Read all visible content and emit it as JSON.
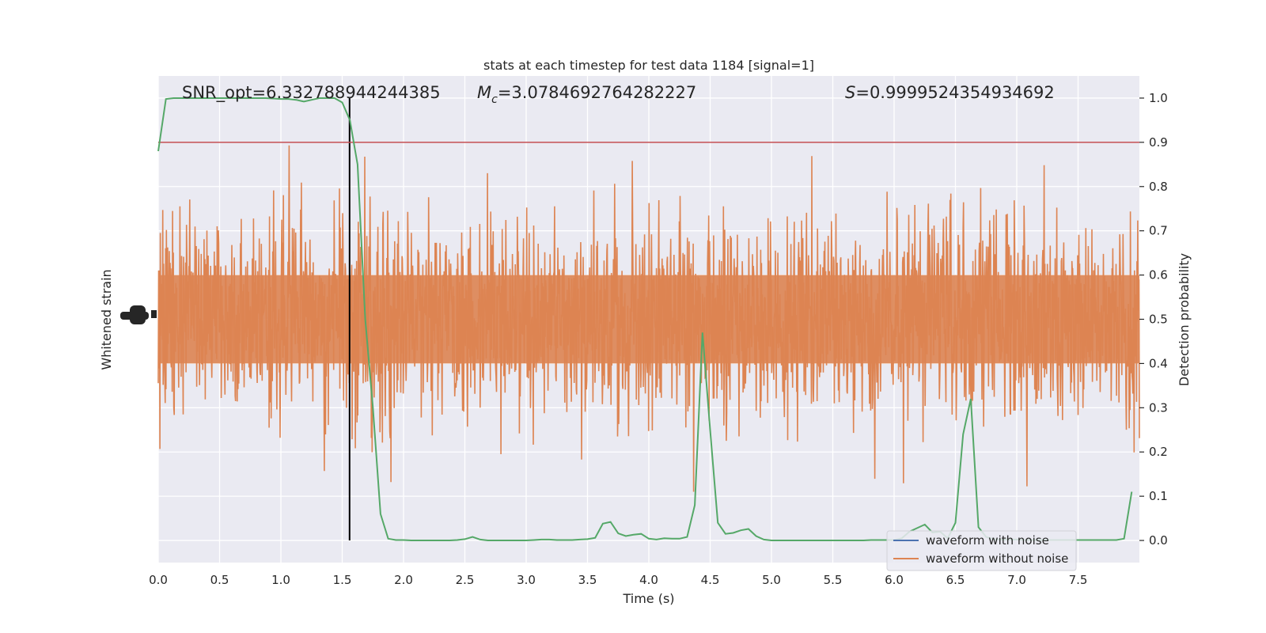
{
  "chart_data": {
    "type": "line",
    "title": "stats at each timestep for test data 1184 [signal=1]",
    "xlabel": "Time (s)",
    "ylabel_left": "Whitened strain",
    "ylabel_right": "Detection probability",
    "xlim": [
      0,
      8
    ],
    "ylim_right": [
      -0.05,
      1.05
    ],
    "x_ticks": [
      0.0,
      0.5,
      1.0,
      1.5,
      2.0,
      2.5,
      3.0,
      3.5,
      4.0,
      4.5,
      5.0,
      5.5,
      6.0,
      6.5,
      7.0,
      7.5
    ],
    "x_tick_labels": [
      "0.0",
      "0.5",
      "1.0",
      "1.5",
      "2.0",
      "2.5",
      "3.0",
      "3.5",
      "4.0",
      "4.5",
      "5.0",
      "5.5",
      "6.0",
      "6.5",
      "7.0",
      "7.5"
    ],
    "y_right_ticks": [
      0.0,
      0.1,
      0.2,
      0.3,
      0.4,
      0.5,
      0.6,
      0.7,
      0.8,
      0.9,
      1.0
    ],
    "y_right_tick_labels": [
      "0.0",
      "0.1",
      "0.2",
      "0.3",
      "0.4",
      "0.5",
      "0.6",
      "0.7",
      "0.8",
      "0.9",
      "1.0"
    ],
    "threshold": 0.9,
    "event_time": 1.56,
    "grid": true,
    "legend_position": "lower-right",
    "annotations": {
      "snr": "SNR_opt=6.332788944244385",
      "mc_symbol": "M",
      "mc_sub": "c",
      "mc_value": "=3.0784692764282227",
      "s_symbol": "S",
      "s_value": "=0.9999524354934692"
    },
    "series": [
      {
        "name": "waveform with noise",
        "color": "#4c72b0"
      },
      {
        "name": "waveform without noise",
        "color": "#dd8452"
      },
      {
        "color": "#55a868",
        "x": [
          0.0,
          0.0625,
          0.125,
          0.1875,
          0.25,
          0.3125,
          0.375,
          0.4375,
          0.5,
          0.5625,
          0.625,
          0.6875,
          0.75,
          0.8125,
          0.875,
          0.9375,
          1.0,
          1.0625,
          1.125,
          1.1875,
          1.25,
          1.3125,
          1.375,
          1.4375,
          1.5,
          1.5625,
          1.625,
          1.6875,
          1.75,
          1.8125,
          1.875,
          1.9375,
          2.0,
          2.0625,
          2.125,
          2.1875,
          2.25,
          2.3125,
          2.375,
          2.4375,
          2.5,
          2.5625,
          2.625,
          2.6875,
          2.75,
          2.8125,
          2.875,
          2.9375,
          3.0,
          3.0625,
          3.125,
          3.1875,
          3.25,
          3.3125,
          3.375,
          3.4375,
          3.5,
          3.5625,
          3.625,
          3.6875,
          3.75,
          3.8125,
          3.875,
          3.9375,
          4.0,
          4.0625,
          4.125,
          4.1875,
          4.25,
          4.3125,
          4.375,
          4.4375,
          4.5,
          4.5625,
          4.625,
          4.6875,
          4.75,
          4.8125,
          4.875,
          4.9375,
          5.0,
          5.0625,
          5.125,
          5.1875,
          5.25,
          5.3125,
          5.375,
          5.4375,
          5.5,
          5.5625,
          5.625,
          5.6875,
          5.75,
          5.8125,
          5.875,
          5.9375,
          6.0,
          6.0625,
          6.125,
          6.1875,
          6.25,
          6.3125,
          6.375,
          6.4375,
          6.5,
          6.5625,
          6.625,
          6.6875,
          6.75,
          6.8125,
          6.875,
          6.9375,
          7.0,
          7.0625,
          7.125,
          7.1875,
          7.25,
          7.3125,
          7.375,
          7.4375,
          7.5,
          7.5625,
          7.625,
          7.6875,
          7.75,
          7.8125,
          7.875,
          7.9375
        ],
        "y": [
          0.88,
          0.998,
          1.0,
          1.0,
          1.0,
          1.0,
          1.0,
          1.0,
          1.0,
          1.0,
          1.0,
          1.0,
          1.0,
          1.0,
          1.0,
          0.999,
          0.998,
          0.998,
          0.996,
          0.992,
          0.996,
          1.0,
          1.0,
          1.0,
          0.99,
          0.95,
          0.85,
          0.5,
          0.3,
          0.06,
          0.004,
          0.001,
          0.001,
          0.0,
          0.0,
          0.0,
          0.0,
          0.0,
          0.0,
          0.001,
          0.003,
          0.008,
          0.002,
          0.0,
          0.0,
          0.0,
          0.0,
          0.0,
          0.0,
          0.001,
          0.002,
          0.002,
          0.001,
          0.001,
          0.001,
          0.002,
          0.003,
          0.006,
          0.038,
          0.042,
          0.016,
          0.01,
          0.013,
          0.015,
          0.004,
          0.002,
          0.005,
          0.004,
          0.004,
          0.008,
          0.08,
          0.47,
          0.25,
          0.04,
          0.015,
          0.017,
          0.023,
          0.026,
          0.01,
          0.002,
          0.0,
          0.0,
          0.0,
          0.0,
          0.0,
          0.0,
          0.0,
          0.0,
          0.0,
          0.0,
          0.0,
          0.0,
          0.0,
          0.001,
          0.001,
          0.001,
          0.001,
          0.005,
          0.02,
          0.028,
          0.036,
          0.018,
          0.02,
          0.005,
          0.04,
          0.24,
          0.32,
          0.03,
          0.008,
          0.003,
          0.002,
          0.002,
          0.002,
          0.001,
          0.001,
          0.001,
          0.001,
          0.001,
          0.001,
          0.001,
          0.001,
          0.001,
          0.001,
          0.001,
          0.001,
          0.001,
          0.004,
          0.11
        ]
      }
    ]
  }
}
